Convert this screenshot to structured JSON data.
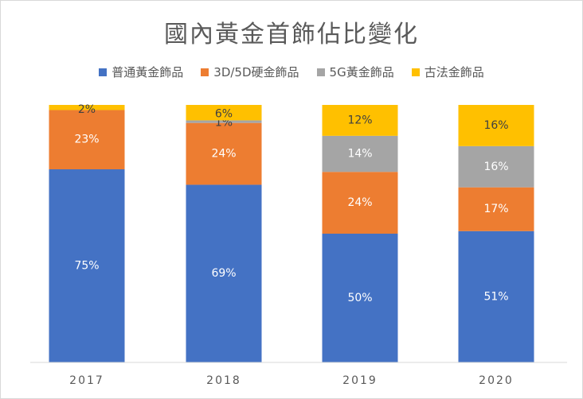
{
  "chart_data": {
    "type": "bar",
    "stacked": true,
    "title": "國內黃金首飾佔比變化",
    "categories": [
      "2017",
      "2018",
      "2019",
      "2020"
    ],
    "series": [
      {
        "name": "普通黃金飾品",
        "color": "#4472c4",
        "values": [
          75,
          69,
          50,
          51
        ],
        "labels": [
          "75%",
          "69%",
          "50%",
          "51%"
        ]
      },
      {
        "name": "3D/5D硬金飾品",
        "color": "#ed7d31",
        "values": [
          23,
          24,
          24,
          17
        ],
        "labels": [
          "23%",
          "24%",
          "24%",
          "17%"
        ]
      },
      {
        "name": "5G黃金飾品",
        "color": "#a5a5a5",
        "values": [
          0,
          1,
          14,
          16
        ],
        "labels": [
          "",
          "1%",
          "14%",
          "16%"
        ]
      },
      {
        "name": "古法金飾品",
        "color": "#ffc000",
        "values": [
          2,
          6,
          12,
          16
        ],
        "labels": [
          "2%",
          "6%",
          "12%",
          "16%"
        ]
      }
    ],
    "ylim": [
      0,
      100
    ],
    "grid": false,
    "legend_position": "top"
  }
}
